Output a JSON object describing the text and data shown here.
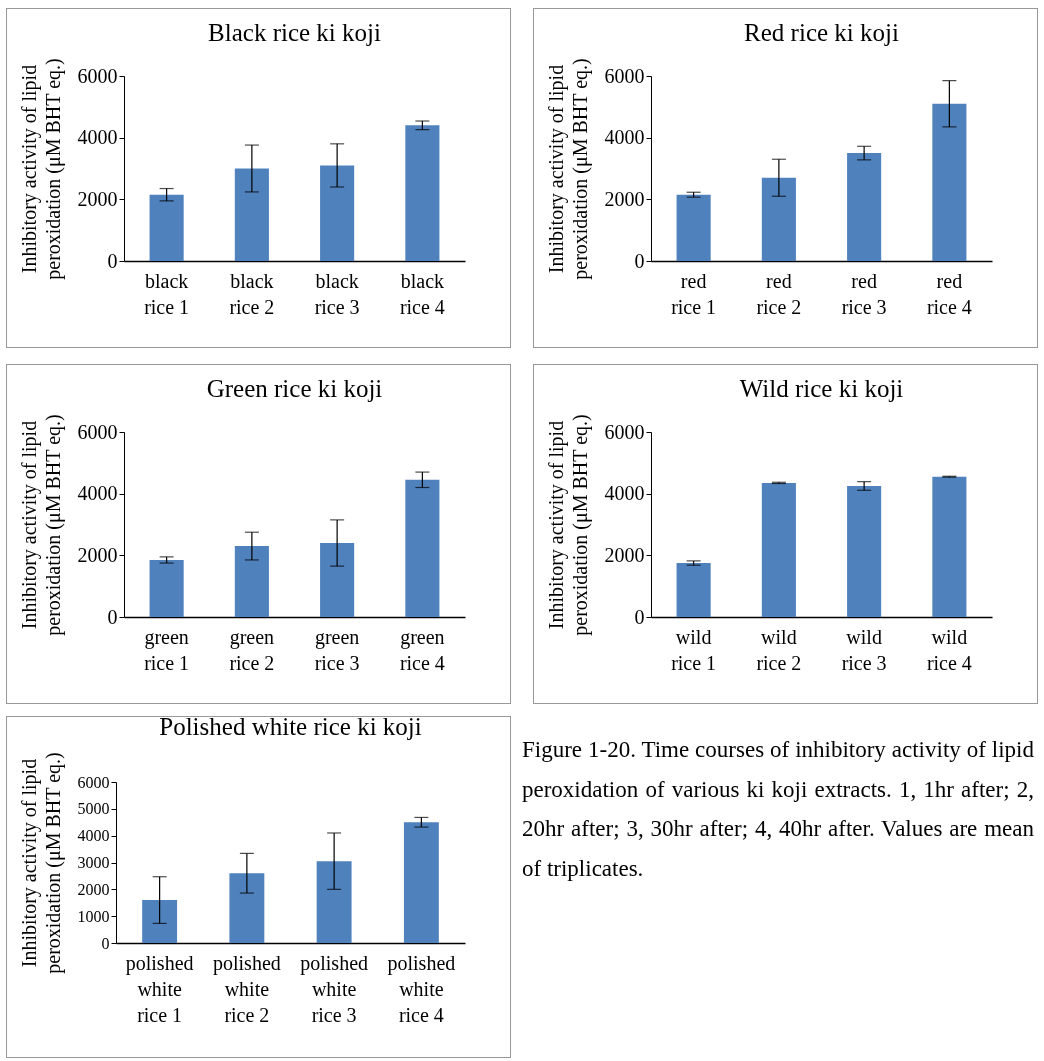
{
  "chart_data": [
    {
      "type": "bar",
      "title": "Black rice ki koji",
      "ylabel": "Inhibitory activity of lipid peroxidation (μM BHT eq.)",
      "categories": [
        "black rice 1",
        "black rice 2",
        "black rice 3",
        "black rice 4"
      ],
      "values": [
        2150,
        3000,
        3100,
        4400
      ],
      "errors": [
        200,
        760,
        700,
        140
      ],
      "color": "#4f81bd",
      "ylim": [
        0,
        6000
      ],
      "yticks": [
        0,
        2000,
        4000,
        6000
      ]
    },
    {
      "type": "bar",
      "title": "Red rice ki koji",
      "ylabel": "Inhibitory activity of lipid peroxidation (μM BHT eq.)",
      "categories": [
        "red rice 1",
        "red rice 2",
        "red rice 3",
        "red rice 4"
      ],
      "values": [
        2150,
        2700,
        3500,
        5100
      ],
      "errors": [
        80,
        600,
        220,
        750
      ],
      "color": "#4f81bd",
      "ylim": [
        0,
        6000
      ],
      "yticks": [
        0,
        2000,
        4000,
        6000
      ]
    },
    {
      "type": "bar",
      "title": "Green rice ki koji",
      "ylabel": "Inhibitory activity of lipid peroxidation (μM BHT eq.)",
      "categories": [
        "green rice 1",
        "green rice 2",
        "green rice 3",
        "green rice 4"
      ],
      "values": [
        1850,
        2300,
        2400,
        4450
      ],
      "errors": [
        100,
        450,
        750,
        250
      ],
      "color": "#4f81bd",
      "ylim": [
        0,
        6000
      ],
      "yticks": [
        0,
        2000,
        4000,
        6000
      ]
    },
    {
      "type": "bar",
      "title": "Wild rice ki koji",
      "ylabel": "Inhibitory activity of lipid peroxidation (μM BHT eq.)",
      "categories": [
        "wild rice 1",
        "wild rice 2",
        "wild rice 3",
        "wild rice 4"
      ],
      "values": [
        1750,
        4350,
        4250,
        4550
      ],
      "errors": [
        70,
        20,
        140,
        15
      ],
      "color": "#4f81bd",
      "ylim": [
        0,
        6000
      ],
      "yticks": [
        0,
        2000,
        4000,
        6000
      ]
    },
    {
      "type": "bar",
      "title": "Polished white rice ki koji",
      "ylabel": "Inhibitory activity of lipid peroxidation (μM BHT eq.)",
      "categories": [
        "polished white rice 1",
        "polished white rice 2",
        "polished white rice 3",
        "polished white rice 4"
      ],
      "values": [
        1600,
        2600,
        3050,
        4500
      ],
      "errors": [
        870,
        740,
        1050,
        180
      ],
      "color": "#4f81bd",
      "ylim": [
        0,
        6000
      ],
      "yticks": [
        0,
        1000,
        2000,
        3000,
        4000,
        5000,
        6000
      ]
    },
    {
      "type": "other",
      "annotations": [
        "Figure 1-20. Time courses of inhibitory activity of lipid peroxidation of various ki koji extracts. 1, 1hr after; 2, 20hr after; 3, 30hr after; 4, 40hr after. Values are mean of triplicates."
      ]
    }
  ]
}
